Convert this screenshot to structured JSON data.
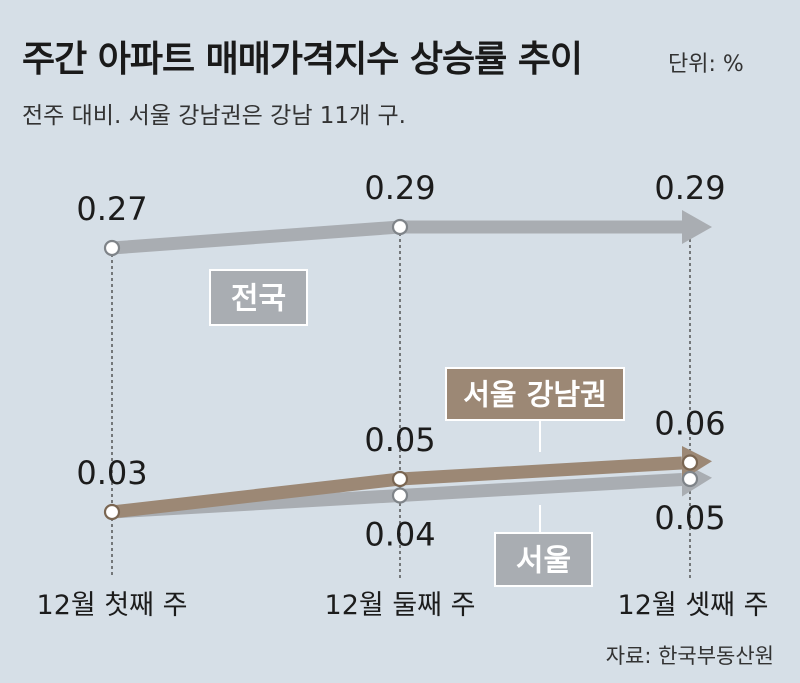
{
  "title": "주간 아파트 매매가격지수 상승률 추이",
  "unit": "단위: %",
  "subtitle": "전주 대비. 서울 강남권은 강남 11개 구.",
  "source": "자료: 한국부동산원",
  "colors": {
    "background": "#d6dfe7",
    "national": "#a9adb2",
    "gangnam": "#9c8875",
    "seoul": "#a9adb2"
  },
  "chart_data": {
    "type": "line",
    "categories": [
      "12월 첫째 주",
      "12월 둘째 주",
      "12월 셋째 주"
    ],
    "series": [
      {
        "name": "전국",
        "values": [
          0.27,
          0.29,
          0.29
        ],
        "labels": [
          "0.27",
          "0.29",
          "0.29"
        ]
      },
      {
        "name": "서울 강남권",
        "values": [
          0.03,
          0.05,
          0.06
        ],
        "labels": [
          "0.03",
          "0.05",
          "0.06"
        ]
      },
      {
        "name": "서울",
        "values": [
          0.03,
          0.04,
          0.05
        ],
        "labels": [
          "0.03",
          "0.04",
          "0.05"
        ]
      }
    ],
    "arrow_heads": true,
    "grid": false
  }
}
